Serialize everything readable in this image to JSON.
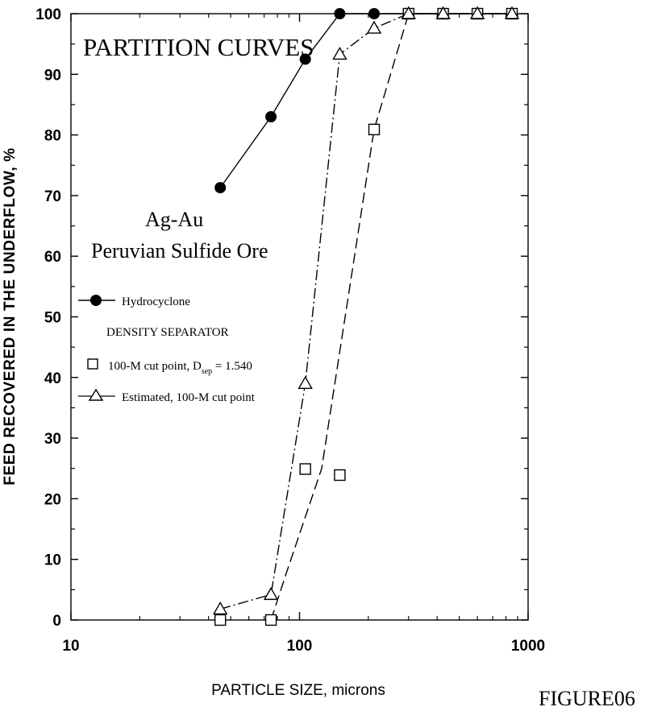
{
  "chart_data": {
    "type": "scatter",
    "title": "PARTITION CURVES",
    "annotation_lines": [
      "Ag-Au",
      "Peruvian Sulfide Ore"
    ],
    "xlabel": "PARTICLE SIZE, microns",
    "ylabel": "FEED RECOVERED IN THE UNDERFLOW, %",
    "x_scale": "log",
    "xlim": [
      10,
      1000
    ],
    "ylim": [
      0,
      100
    ],
    "x_ticks": [
      "10",
      "100",
      "1000"
    ],
    "y_ticks": [
      "0",
      "10",
      "20",
      "30",
      "40",
      "50",
      "60",
      "70",
      "80",
      "90",
      "100"
    ],
    "grid": false,
    "legend_position": "left",
    "legend_header": "DENSITY SEPARATOR",
    "series": [
      {
        "name": "Hydrocyclone",
        "marker": "filled-circle",
        "line": "solid",
        "x": [
          45,
          75,
          106,
          150,
          212,
          300,
          425,
          600,
          850
        ],
        "y": [
          71.3,
          83.0,
          92.5,
          100,
          100,
          100,
          100,
          100,
          100
        ]
      },
      {
        "name": "100-M cut point, D",
        "name_subscript": "sep",
        "name_suffix": " = 1.540",
        "marker": "open-square",
        "line": "dashed",
        "x": [
          45,
          75,
          106,
          150,
          212,
          300,
          425,
          600,
          850
        ],
        "y": [
          0,
          0,
          24.9,
          23.9,
          80.9,
          100,
          100,
          100,
          100
        ],
        "curve_x": [
          75,
          88,
          125,
          212,
          300,
          425,
          600,
          850
        ],
        "curve_y": [
          0,
          8,
          25,
          80.9,
          100,
          100,
          100,
          100
        ]
      },
      {
        "name": "Estimated, 100-M cut point",
        "marker": "open-triangle",
        "line": "dash-dot",
        "x": [
          45,
          75,
          106,
          150,
          212,
          300,
          425,
          600,
          850
        ],
        "y": [
          1.8,
          4.2,
          39.0,
          93.3,
          97.6,
          100,
          100,
          100,
          100
        ]
      }
    ]
  },
  "figure_label": "FIGURE06"
}
